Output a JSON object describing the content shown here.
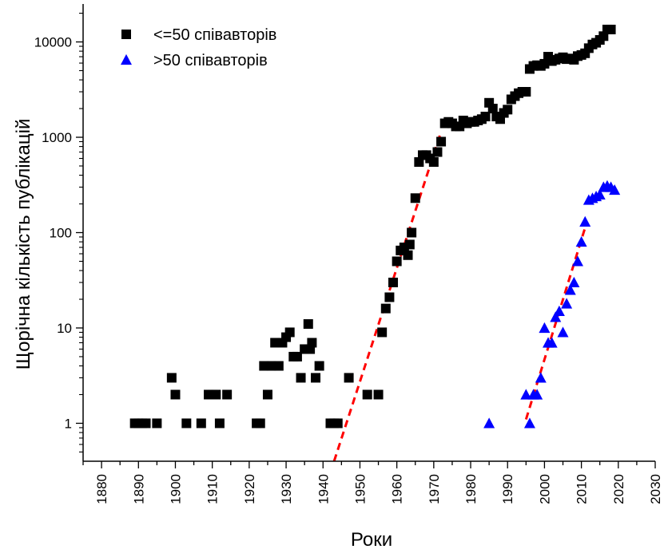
{
  "chart_data": {
    "type": "scatter",
    "xlabel": "Роки",
    "ylabel": "Щорічна кількість публікацій",
    "xlim": [
      1875,
      2030
    ],
    "ylim": [
      0.4,
      25000
    ],
    "yscale": "log",
    "x_ticks": [
      1880,
      1890,
      1900,
      1910,
      1920,
      1930,
      1940,
      1950,
      1960,
      1970,
      1980,
      1990,
      2000,
      2010,
      2020,
      2030
    ],
    "y_ticks": [
      1,
      10,
      100,
      1000,
      10000
    ],
    "y_tick_labels": [
      "1",
      "10",
      "100",
      "1000",
      "10000"
    ],
    "grid": false,
    "legend_position": "top-left",
    "series": [
      {
        "name": "<=50 співавторів",
        "marker": "square",
        "color": "#000000",
        "points": [
          [
            1889,
            1
          ],
          [
            1890,
            1
          ],
          [
            1891,
            1
          ],
          [
            1892,
            1
          ],
          [
            1895,
            1
          ],
          [
            1899,
            3
          ],
          [
            1900,
            2
          ],
          [
            1903,
            1
          ],
          [
            1907,
            1
          ],
          [
            1909,
            2
          ],
          [
            1910,
            2
          ],
          [
            1911,
            2
          ],
          [
            1912,
            1
          ],
          [
            1914,
            2
          ],
          [
            1922,
            1
          ],
          [
            1923,
            1
          ],
          [
            1924,
            4
          ],
          [
            1925,
            2
          ],
          [
            1926,
            4
          ],
          [
            1927,
            7
          ],
          [
            1928,
            4
          ],
          [
            1929,
            7
          ],
          [
            1930,
            8
          ],
          [
            1931,
            9
          ],
          [
            1932,
            5
          ],
          [
            1933,
            5
          ],
          [
            1934,
            3
          ],
          [
            1935,
            6
          ],
          [
            1936,
            11
          ],
          [
            1936.5,
            6
          ],
          [
            1937,
            7
          ],
          [
            1938,
            3
          ],
          [
            1939,
            4
          ],
          [
            1942,
            1
          ],
          [
            1943,
            1
          ],
          [
            1944,
            1
          ],
          [
            1947,
            3
          ],
          [
            1952,
            2
          ],
          [
            1955,
            2
          ],
          [
            1956,
            9
          ],
          [
            1957,
            16
          ],
          [
            1958,
            21
          ],
          [
            1959,
            30
          ],
          [
            1960,
            50
          ],
          [
            1961,
            65
          ],
          [
            1962,
            70
          ],
          [
            1963,
            58
          ],
          [
            1963.5,
            75
          ],
          [
            1964,
            100
          ],
          [
            1965,
            230
          ],
          [
            1966,
            550
          ],
          [
            1967,
            650
          ],
          [
            1968,
            650
          ],
          [
            1969,
            600
          ],
          [
            1970,
            550
          ],
          [
            1971,
            700
          ],
          [
            1972,
            900
          ],
          [
            1973,
            1400
          ],
          [
            1974,
            1450
          ],
          [
            1975,
            1400
          ],
          [
            1976,
            1300
          ],
          [
            1977,
            1300
          ],
          [
            1978,
            1500
          ],
          [
            1979,
            1400
          ],
          [
            1980,
            1450
          ],
          [
            1981,
            1450
          ],
          [
            1982,
            1500
          ],
          [
            1983,
            1550
          ],
          [
            1984,
            1650
          ],
          [
            1985,
            2300
          ],
          [
            1986,
            2000
          ],
          [
            1987,
            1650
          ],
          [
            1988,
            1550
          ],
          [
            1989,
            1800
          ],
          [
            1990,
            1950
          ],
          [
            1991,
            2500
          ],
          [
            1992,
            2700
          ],
          [
            1993,
            2900
          ],
          [
            1994,
            3000
          ],
          [
            1995,
            3000
          ],
          [
            1996,
            5200
          ],
          [
            1997,
            5600
          ],
          [
            1998,
            5700
          ],
          [
            1999,
            5600
          ],
          [
            2000,
            5900
          ],
          [
            2001,
            7000
          ],
          [
            2002,
            6300
          ],
          [
            2003,
            6500
          ],
          [
            2004,
            6700
          ],
          [
            2005,
            6900
          ],
          [
            2006,
            6600
          ],
          [
            2007,
            6700
          ],
          [
            2008,
            6500
          ],
          [
            2009,
            7100
          ],
          [
            2010,
            7300
          ],
          [
            2011,
            7600
          ],
          [
            2012,
            8600
          ],
          [
            2013,
            9400
          ],
          [
            2014,
            9800
          ],
          [
            2015,
            10500
          ],
          [
            2016,
            11500
          ],
          [
            2017,
            13500
          ],
          [
            2018,
            13500
          ]
        ]
      },
      {
        "name": ">50 співавторів",
        "marker": "triangle",
        "color": "#0000ff",
        "points": [
          [
            1985,
            1
          ],
          [
            1995,
            2
          ],
          [
            1996,
            1
          ],
          [
            1997,
            2
          ],
          [
            1998,
            2
          ],
          [
            1999,
            3
          ],
          [
            2000,
            10
          ],
          [
            2001,
            7
          ],
          [
            2002,
            7
          ],
          [
            2003,
            13
          ],
          [
            2004,
            15
          ],
          [
            2005,
            9
          ],
          [
            2006,
            18
          ],
          [
            2007,
            25
          ],
          [
            2008,
            30
          ],
          [
            2009,
            50
          ],
          [
            2010,
            80
          ],
          [
            2011,
            130
          ],
          [
            2012,
            220
          ],
          [
            2013,
            230
          ],
          [
            2014,
            240
          ],
          [
            2015,
            250
          ],
          [
            2016,
            300
          ],
          [
            2017,
            310
          ],
          [
            2018,
            300
          ],
          [
            2019,
            280
          ]
        ]
      }
    ],
    "fit_lines": [
      {
        "color": "#ff0000",
        "style": "dashed",
        "from": [
          1943,
          0.4
        ],
        "to": [
          1972,
          1150
        ]
      },
      {
        "color": "#ff0000",
        "style": "dashed",
        "from": [
          1995,
          1.1
        ],
        "to": [
          2011.5,
          130
        ]
      }
    ]
  }
}
